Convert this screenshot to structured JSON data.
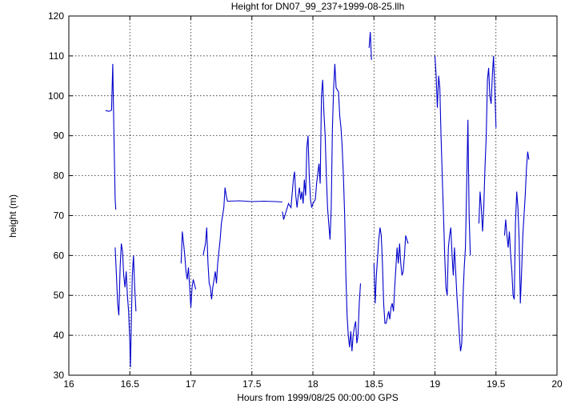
{
  "chart_data": {
    "type": "line",
    "title": "Height for DN07_99_237+1999-08-25.llh",
    "xlabel": "Hours from 1999/08/25 00:00:00 GPS",
    "ylabel": "height (m)",
    "xlim": [
      16,
      20
    ],
    "ylim": [
      30,
      120
    ],
    "xticks": [
      16,
      16.5,
      17,
      17.5,
      18,
      18.5,
      19,
      19.5,
      20
    ],
    "yticks": [
      30,
      40,
      50,
      60,
      70,
      80,
      90,
      100,
      110,
      120
    ],
    "xtick_labels": [
      "16",
      "16.5",
      "17",
      "17.5",
      "18",
      "18.5",
      "19",
      "19.5",
      "20"
    ],
    "ytick_labels": [
      "30",
      "40",
      "50",
      "60",
      "70",
      "80",
      "90",
      "100",
      "110",
      "120"
    ],
    "grid": true,
    "series_color": "#0000cc",
    "series": [
      {
        "segments": [
          [
            [
              16.3,
              96.3
            ],
            [
              16.33,
              96.1
            ],
            [
              16.35,
              96.4
            ],
            [
              16.36,
              108.0
            ],
            [
              16.37,
              90.0
            ],
            [
              16.38,
              74.0
            ],
            [
              16.385,
              71.5
            ]
          ],
          [
            [
              16.38,
              62.0
            ],
            [
              16.39,
              55.0
            ],
            [
              16.4,
              48.0
            ],
            [
              16.41,
              45.0
            ],
            [
              16.42,
              57.0
            ],
            [
              16.43,
              63.0
            ],
            [
              16.44,
              61.0
            ],
            [
              16.45,
              55.0
            ],
            [
              16.46,
              52.0
            ],
            [
              16.47,
              56.0
            ],
            [
              16.48,
              50.0
            ],
            [
              16.49,
              46.0
            ],
            [
              16.5,
              38.0
            ],
            [
              16.505,
              32.0
            ],
            [
              16.51,
              40.0
            ],
            [
              16.52,
              55.0
            ],
            [
              16.53,
              60.0
            ],
            [
              16.54,
              52.0
            ],
            [
              16.55,
              46.0
            ]
          ],
          [
            [
              16.92,
              58.0
            ],
            [
              16.93,
              66.0
            ],
            [
              16.94,
              63.0
            ],
            [
              16.95,
              60.0
            ],
            [
              16.96,
              56.0
            ],
            [
              16.97,
              54.0
            ],
            [
              16.98,
              57.0
            ],
            [
              16.99,
              52.0
            ],
            [
              17.0,
              47.0
            ],
            [
              17.01,
              52.0
            ],
            [
              17.02,
              54.0
            ],
            [
              17.04,
              51.5
            ]
          ],
          [
            [
              17.1,
              60.0
            ],
            [
              17.12,
              63.0
            ],
            [
              17.13,
              67.0
            ],
            [
              17.14,
              58.0
            ],
            [
              17.15,
              53.0
            ],
            [
              17.16,
              52.0
            ],
            [
              17.17,
              49.0
            ],
            [
              17.18,
              52.0
            ],
            [
              17.19,
              54.0
            ],
            [
              17.2,
              56.0
            ],
            [
              17.21,
              53.0
            ],
            [
              17.22,
              58.0
            ],
            [
              17.24,
              64.0
            ],
            [
              17.25,
              68.0
            ],
            [
              17.27,
              72.0
            ],
            [
              17.28,
              77.0
            ],
            [
              17.29,
              75.0
            ],
            [
              17.3,
              73.5
            ]
          ],
          [
            [
              17.3,
              73.6
            ],
            [
              17.4,
              73.7
            ],
            [
              17.5,
              73.5
            ],
            [
              17.6,
              73.6
            ],
            [
              17.7,
              73.5
            ],
            [
              17.75,
              73.4
            ]
          ],
          [
            [
              17.75,
              71.0
            ],
            [
              17.76,
              69.0
            ],
            [
              17.78,
              71.0
            ],
            [
              17.8,
              73.0
            ],
            [
              17.82,
              72.0
            ],
            [
              17.84,
              79.0
            ],
            [
              17.85,
              81.0
            ],
            [
              17.86,
              75.0
            ],
            [
              17.87,
              72.0
            ],
            [
              17.88,
              75.0
            ],
            [
              17.89,
              77.0
            ],
            [
              17.9,
              74.0
            ],
            [
              17.91,
              76.0
            ],
            [
              17.92,
              73.0
            ],
            [
              17.93,
              79.0
            ],
            [
              17.94,
              75.0
            ],
            [
              17.95,
              87.0
            ],
            [
              17.96,
              90.0
            ],
            [
              17.97,
              80.0
            ],
            [
              17.98,
              74.0
            ],
            [
              17.99,
              72.0
            ],
            [
              18.0,
              73.0
            ],
            [
              18.02,
              74.0
            ],
            [
              18.03,
              78.0
            ],
            [
              18.05,
              83.0
            ],
            [
              18.06,
              78.0
            ],
            [
              18.07,
              100.0
            ],
            [
              18.08,
              104.0
            ],
            [
              18.09,
              96.0
            ],
            [
              18.1,
              90.0
            ],
            [
              18.11,
              80.0
            ],
            [
              18.12,
              72.0
            ],
            [
              18.13,
              68.0
            ],
            [
              18.14,
              64.0
            ],
            [
              18.15,
              72.0
            ],
            [
              18.16,
              92.0
            ],
            [
              18.17,
              102.0
            ],
            [
              18.18,
              108.0
            ],
            [
              18.19,
              102.0
            ],
            [
              18.2,
              101.5
            ],
            [
              18.21,
              101.0
            ],
            [
              18.22,
              95.0
            ],
            [
              18.23,
              92.0
            ],
            [
              18.24,
              87.0
            ],
            [
              18.25,
              80.0
            ],
            [
              18.26,
              70.0
            ],
            [
              18.27,
              55.0
            ],
            [
              18.28,
              45.0
            ],
            [
              18.29,
              40.0
            ],
            [
              18.3,
              37.0
            ],
            [
              18.31,
              41.0
            ],
            [
              18.32,
              36.0
            ],
            [
              18.33,
              40.0
            ],
            [
              18.34,
              42.0
            ],
            [
              18.35,
              43.5
            ],
            [
              18.36,
              38.0
            ],
            [
              18.37,
              40.0
            ],
            [
              18.38,
              48.0
            ],
            [
              18.39,
              53.0
            ]
          ],
          [
            [
              18.46,
              112.0
            ],
            [
              18.47,
              116.0
            ],
            [
              18.48,
              109.0
            ]
          ],
          [
            [
              18.5,
              58.0
            ],
            [
              18.51,
              48.0
            ],
            [
              18.52,
              55.0
            ],
            [
              18.54,
              64.0
            ],
            [
              18.55,
              67.0
            ],
            [
              18.56,
              65.0
            ],
            [
              18.57,
              58.0
            ],
            [
              18.58,
              48.0
            ],
            [
              18.59,
              43.0
            ],
            [
              18.6,
              43.0
            ],
            [
              18.62,
              46.0
            ],
            [
              18.63,
              44.0
            ],
            [
              18.64,
              47.0
            ],
            [
              18.65,
              48.0
            ],
            [
              18.66,
              46.0
            ],
            [
              18.67,
              52.0
            ],
            [
              18.68,
              57.0
            ],
            [
              18.69,
              62.0
            ],
            [
              18.7,
              58.0
            ],
            [
              18.71,
              63.0
            ],
            [
              18.72,
              58.0
            ],
            [
              18.73,
              55.0
            ],
            [
              18.74,
              56.0
            ],
            [
              18.75,
              60.0
            ],
            [
              18.76,
              65.0
            ],
            [
              18.77,
              64.0
            ],
            [
              18.78,
              63.0
            ]
          ],
          [
            [
              19.0,
              110.0
            ],
            [
              19.01,
              105.0
            ],
            [
              19.02,
              97.0
            ],
            [
              19.03,
              105.0
            ],
            [
              19.04,
              102.0
            ],
            [
              19.05,
              90.0
            ],
            [
              19.06,
              80.0
            ],
            [
              19.07,
              70.0
            ],
            [
              19.08,
              60.0
            ],
            [
              19.09,
              52.0
            ],
            [
              19.1,
              50.0
            ],
            [
              19.11,
              62.0
            ],
            [
              19.12,
              65.0
            ],
            [
              19.13,
              67.0
            ],
            [
              19.14,
              60.0
            ],
            [
              19.15,
              55.0
            ],
            [
              19.16,
              62.0
            ],
            [
              19.17,
              56.0
            ],
            [
              19.18,
              50.0
            ],
            [
              19.19,
              45.0
            ],
            [
              19.2,
              40.0
            ],
            [
              19.21,
              36.0
            ],
            [
              19.22,
              38.0
            ],
            [
              19.23,
              50.0
            ],
            [
              19.24,
              57.0
            ],
            [
              19.25,
              62.0
            ],
            [
              19.26,
              78.0
            ],
            [
              19.27,
              94.0
            ],
            [
              19.28,
              70.0
            ],
            [
              19.29,
              60.0
            ]
          ],
          [
            [
              19.36,
              68.0
            ],
            [
              19.37,
              76.0
            ],
            [
              19.38,
              72.0
            ],
            [
              19.39,
              66.0
            ],
            [
              19.4,
              72.0
            ],
            [
              19.41,
              82.0
            ],
            [
              19.42,
              90.0
            ],
            [
              19.43,
              104.0
            ],
            [
              19.44,
              107.0
            ],
            [
              19.45,
              100.0
            ],
            [
              19.46,
              98.0
            ],
            [
              19.47,
              105.0
            ],
            [
              19.48,
              110.0
            ],
            [
              19.49,
              102.0
            ],
            [
              19.5,
              92.0
            ]
          ],
          [
            [
              19.57,
              65.0
            ],
            [
              19.58,
              69.0
            ],
            [
              19.59,
              65.0
            ],
            [
              19.6,
              62.0
            ],
            [
              19.61,
              66.0
            ],
            [
              19.62,
              60.0
            ],
            [
              19.63,
              56.0
            ],
            [
              19.64,
              50.0
            ],
            [
              19.65,
              49.0
            ],
            [
              19.66,
              68.0
            ],
            [
              19.67,
              76.0
            ],
            [
              19.68,
              72.0
            ],
            [
              19.69,
              64.0
            ],
            [
              19.7,
              48.0
            ],
            [
              19.71,
              56.0
            ],
            [
              19.72,
              65.0
            ],
            [
              19.73,
              70.0
            ],
            [
              19.74,
              75.0
            ],
            [
              19.75,
              82.0
            ],
            [
              19.76,
              86.0
            ],
            [
              19.77,
              84.0
            ]
          ]
        ]
      }
    ]
  }
}
